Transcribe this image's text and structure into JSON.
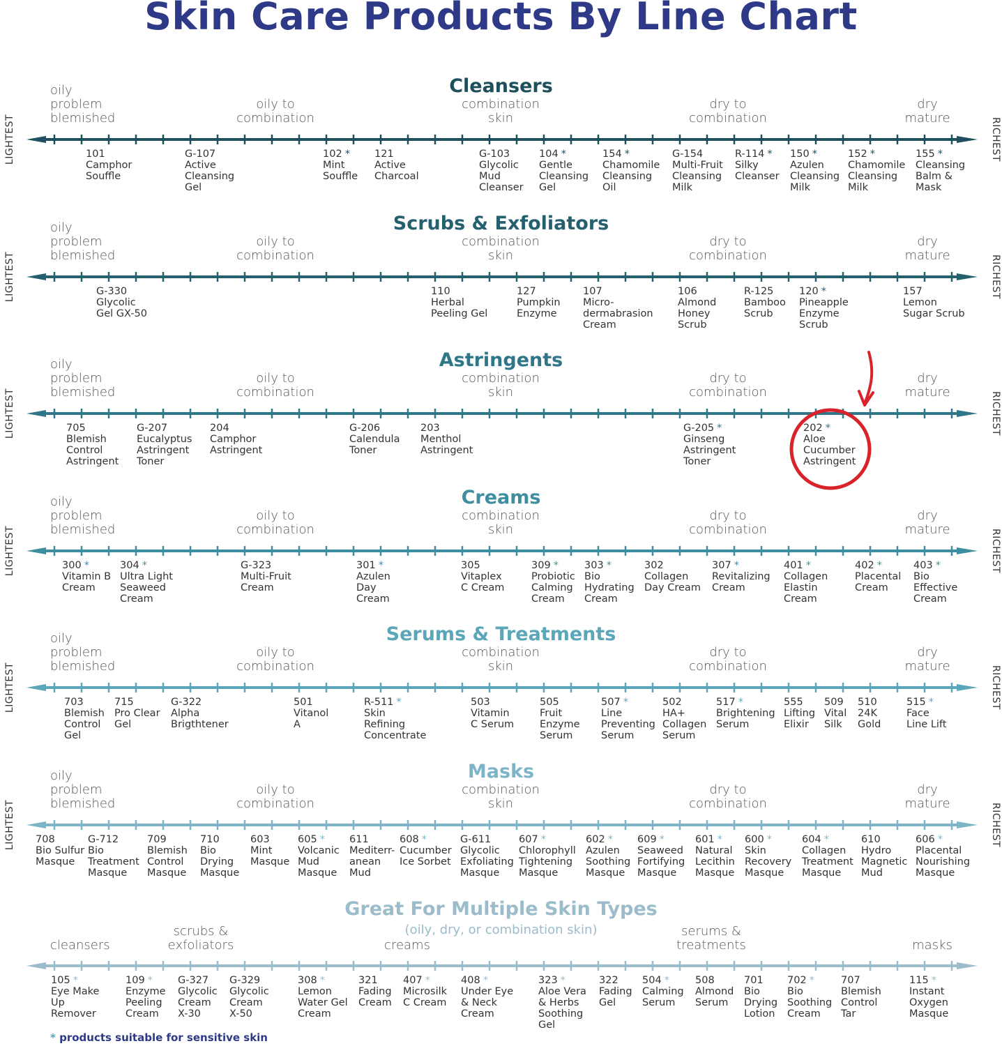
{
  "title": "Skin Care Products By Line Chart",
  "axis_left_label": "LIGHTEST",
  "axis_right_label": "RICHEST",
  "zone_labels": {
    "oily": "oily\nproblem\nblemished",
    "oily_combo": "oily to\ncombination",
    "combo": "combination\nskin",
    "dry_combo": "dry to\ncombination",
    "dry": "dry\nmature"
  },
  "highlight": {
    "product": "202 Aloe Cucumber Astringent",
    "color": "#d9232a"
  },
  "sections": [
    {
      "title": "Cleansers",
      "color": "#1d4f5c",
      "products": [
        {
          "code": "101",
          "sensitive": false,
          "name": "Camphor\nSouffle"
        },
        {
          "code": "G-107",
          "sensitive": false,
          "name": "Active\nCleansing\nGel"
        },
        {
          "code": "102",
          "sensitive": true,
          "name": "Mint\nSouffle"
        },
        {
          "code": "121",
          "sensitive": false,
          "name": "Active\nCharcoal"
        },
        {
          "code": "G-103",
          "sensitive": false,
          "name": "Glycolic\nMud\nCleanser"
        },
        {
          "code": "104",
          "sensitive": true,
          "name": "Gentle\nCleansing\nGel"
        },
        {
          "code": "154",
          "sensitive": true,
          "name": "Chamomile\nCleansing\nOil"
        },
        {
          "code": "G-154",
          "sensitive": false,
          "name": "Multi-Fruit\nCleansing\nMilk"
        },
        {
          "code": "R-114",
          "sensitive": true,
          "name": "Silky\nCleanser"
        },
        {
          "code": "150",
          "sensitive": true,
          "name": "Azulen\nCleansing\nMilk"
        },
        {
          "code": "152",
          "sensitive": true,
          "name": "Chamomile\nCleansing\nMilk"
        },
        {
          "code": "155",
          "sensitive": true,
          "name": "Cleansing\nBalm &\nMask"
        }
      ]
    },
    {
      "title": "Scrubs & Exfoliators",
      "color": "#25606f",
      "products": [
        {
          "code": "G-330",
          "sensitive": false,
          "name": "Glycolic\nGel GX-50"
        },
        {
          "code": "110",
          "sensitive": false,
          "name": "Herbal\nPeeling Gel"
        },
        {
          "code": "127",
          "sensitive": false,
          "name": "Pumpkin\nEnzyme"
        },
        {
          "code": "107",
          "sensitive": false,
          "name": "Micro-\ndermabrasion\nCream"
        },
        {
          "code": "106",
          "sensitive": false,
          "name": "Almond\nHoney\nScrub"
        },
        {
          "code": "R-125",
          "sensitive": false,
          "name": "Bamboo\nScrub"
        },
        {
          "code": "120",
          "sensitive": true,
          "name": "Pineapple\nEnzyme\nScrub"
        },
        {
          "code": "157",
          "sensitive": false,
          "name": "Lemon\nSugar Scrub"
        }
      ]
    },
    {
      "title": "Astringents",
      "color": "#2f7688",
      "products": [
        {
          "code": "705",
          "sensitive": false,
          "name": "Blemish\nControl\nAstringent"
        },
        {
          "code": "G-207",
          "sensitive": false,
          "name": "Eucalyptus\nAstringent\nToner"
        },
        {
          "code": "204",
          "sensitive": false,
          "name": "Camphor\nAstringent"
        },
        {
          "code": "G-206",
          "sensitive": false,
          "name": "Calendula\nToner"
        },
        {
          "code": "203",
          "sensitive": false,
          "name": "Menthol\nAstringent"
        },
        {
          "code": "G-205",
          "sensitive": true,
          "name": "Ginseng\nAstringent\nToner"
        },
        {
          "code": "202",
          "sensitive": true,
          "name": "Aloe\nCucumber\nAstringent"
        }
      ]
    },
    {
      "title": "Creams",
      "color": "#3f8ea0",
      "products": [
        {
          "code": "300",
          "sensitive": true,
          "name": "Vitamin B\nCream"
        },
        {
          "code": "304",
          "sensitive": true,
          "name": "Ultra Light\nSeaweed\nCream"
        },
        {
          "code": "G-323",
          "sensitive": false,
          "name": "Multi-Fruit\nCream"
        },
        {
          "code": "301",
          "sensitive": true,
          "name": "Azulen\nDay\nCream"
        },
        {
          "code": "305",
          "sensitive": false,
          "name": "Vitaplex\nC Cream"
        },
        {
          "code": "309",
          "sensitive": true,
          "name": "Probiotic\nCalming\nCream"
        },
        {
          "code": "303",
          "sensitive": true,
          "name": "Bio\nHydrating\nCream"
        },
        {
          "code": "302",
          "sensitive": false,
          "name": "Collagen\nDay Cream"
        },
        {
          "code": "307",
          "sensitive": true,
          "name": "Revitalizing\nCream"
        },
        {
          "code": "401",
          "sensitive": true,
          "name": "Collagen\nElastin\nCream"
        },
        {
          "code": "402",
          "sensitive": true,
          "name": "Placental\nCream"
        },
        {
          "code": "403",
          "sensitive": true,
          "name": "Bio\nEffective\nCream"
        }
      ]
    },
    {
      "title": "Serums & Treatments",
      "color": "#5ba6b8",
      "products": [
        {
          "code": "703",
          "sensitive": false,
          "name": "Blemish\nControl\nGel"
        },
        {
          "code": "715",
          "sensitive": false,
          "name": "Pro Clear\nGel"
        },
        {
          "code": "G-322",
          "sensitive": false,
          "name": "Alpha\nBrigthtener"
        },
        {
          "code": "501",
          "sensitive": false,
          "name": "Vitanol\nA"
        },
        {
          "code": "R-511",
          "sensitive": true,
          "name": "Skin\nRefining\nConcentrate"
        },
        {
          "code": "503",
          "sensitive": false,
          "name": "Vitamin\nC Serum"
        },
        {
          "code": "505",
          "sensitive": false,
          "name": "Fruit\nEnzyme\nSerum"
        },
        {
          "code": "507",
          "sensitive": true,
          "name": "Line\nPreventing\nSerum"
        },
        {
          "code": "502",
          "sensitive": false,
          "name": "HA+\nCollagen\nSerum"
        },
        {
          "code": "517",
          "sensitive": true,
          "name": "Brightening\nSerum"
        },
        {
          "code": "555",
          "sensitive": false,
          "name": "Lifting\nElixir"
        },
        {
          "code": "509",
          "sensitive": false,
          "name": "Vital\nSilk"
        },
        {
          "code": "510",
          "sensitive": false,
          "name": "24K\nGold"
        },
        {
          "code": "515",
          "sensitive": true,
          "name": "Face\nLine Lift"
        }
      ]
    },
    {
      "title": "Masks",
      "color": "#7db5c8",
      "products": [
        {
          "code": "708",
          "sensitive": false,
          "name": "Bio Sulfur\nMasque"
        },
        {
          "code": "G-712",
          "sensitive": false,
          "name": "Bio\nTreatment\nMasque"
        },
        {
          "code": "709",
          "sensitive": false,
          "name": "Blemish\nControl\nMasque"
        },
        {
          "code": "710",
          "sensitive": false,
          "name": "Bio\nDrying\nMasque"
        },
        {
          "code": "603",
          "sensitive": false,
          "name": "Mint\nMasque"
        },
        {
          "code": "605",
          "sensitive": true,
          "name": "Volcanic\nMud\nMasque"
        },
        {
          "code": "611",
          "sensitive": false,
          "name": "Mediterr-\nanean\nMud"
        },
        {
          "code": "608",
          "sensitive": true,
          "name": "Cucumber\nIce Sorbet"
        },
        {
          "code": "G-611",
          "sensitive": false,
          "name": "Glycolic\nExfoliating\nMasque"
        },
        {
          "code": "607",
          "sensitive": true,
          "name": "Chlorophyll\nTightening\nMasque"
        },
        {
          "code": "602",
          "sensitive": true,
          "name": "Azulen\nSoothing\nMasque"
        },
        {
          "code": "609",
          "sensitive": true,
          "name": "Seaweed\nFortifying\nMasque"
        },
        {
          "code": "601",
          "sensitive": true,
          "name": "Natural\nLecithin\nMasque"
        },
        {
          "code": "600",
          "sensitive": true,
          "name": "Skin\nRecovery\nMasque"
        },
        {
          "code": "604",
          "sensitive": true,
          "name": "Collagen\nTreatment\nMasque"
        },
        {
          "code": "610",
          "sensitive": false,
          "name": "Hydro\nMagnetic\nMud"
        },
        {
          "code": "606",
          "sensitive": true,
          "name": "Placental\nNourishing\nMasque"
        }
      ]
    }
  ],
  "multi": {
    "title": "Great For Multiple Skin Types",
    "subtitle": "(oily, dry, or combination skin)",
    "color": "#9bbcca",
    "zones": {
      "cleansers": "cleansers",
      "scrubs": "scrubs &\nexfoliators",
      "creams": "creams",
      "serums": "serums &\ntreatments",
      "masks": "masks"
    },
    "products": [
      {
        "code": "105",
        "sensitive": true,
        "name": "Eye Make\nUp\nRemover"
      },
      {
        "code": "109",
        "sensitive": true,
        "name": "Enzyme\nPeeling\nCream"
      },
      {
        "code": "G-327",
        "sensitive": false,
        "name": "Glycolic\nCream\nX-30"
      },
      {
        "code": "G-329",
        "sensitive": false,
        "name": "Glycolic\nCream\nX-50"
      },
      {
        "code": "308",
        "sensitive": true,
        "name": "Lemon\nWater Gel\nCream"
      },
      {
        "code": "321",
        "sensitive": false,
        "name": "Fading\nCream"
      },
      {
        "code": "407",
        "sensitive": true,
        "name": "Microsilk\nC Cream"
      },
      {
        "code": "408",
        "sensitive": true,
        "name": "Under Eye\n& Neck\nCream"
      },
      {
        "code": "323",
        "sensitive": true,
        "name": "Aloe Vera\n& Herbs\nSoothing\nGel"
      },
      {
        "code": "322",
        "sensitive": false,
        "name": "Fading\nGel"
      },
      {
        "code": "504",
        "sensitive": true,
        "name": "Calming\nSerum"
      },
      {
        "code": "508",
        "sensitive": false,
        "name": "Almond\nSerum"
      },
      {
        "code": "701",
        "sensitive": false,
        "name": "Bio\nDrying\nLotion"
      },
      {
        "code": "702",
        "sensitive": true,
        "name": "Bio\nSoothing\nCream"
      },
      {
        "code": "707",
        "sensitive": false,
        "name": "Blemish\nControl\nTar"
      },
      {
        "code": "115",
        "sensitive": true,
        "name": "Instant\nOxygen\nMasque"
      }
    ]
  },
  "footnote": {
    "asterisk": "*",
    "text": "products suitable for sensitive skin"
  }
}
